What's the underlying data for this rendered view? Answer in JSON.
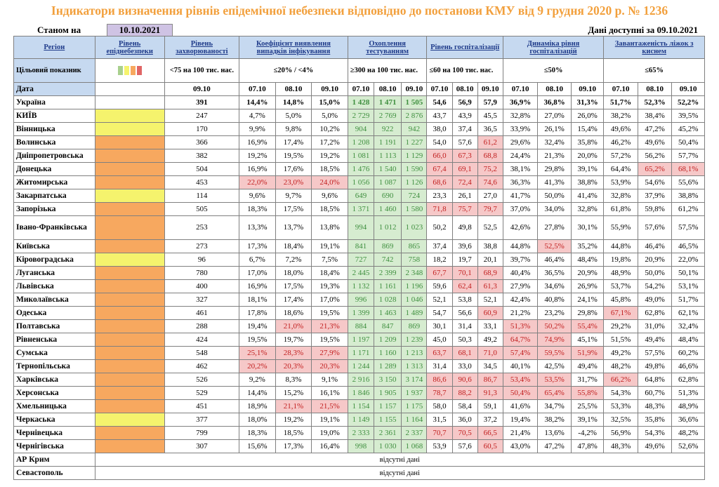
{
  "title": "Індикатори визначення рівнів епідемічної небезпеки відповідно до постанови КМУ від 9 грудня 2020 р. № 1236",
  "as_of_label": "Станом на",
  "as_of_date": "10.10.2021",
  "data_available": "Дані доступні за  09.10.2021",
  "colors": {
    "yellow": "#f5f36d",
    "orange": "#f7a85f",
    "green": "#d6ecd0",
    "red": "#f6c8c8",
    "red_text": "#c11e1e",
    "green_text": "#3f8f3f",
    "header_bg": "#c6d9f0",
    "title": "#f2a03d"
  },
  "headers": {
    "region": "Регіон",
    "level": "Рівень епіднебезпеки",
    "incidence": "Рівень захворюваності",
    "detection": "Коефіцієнт виявлення випадків інфікування",
    "testing": "Охоплення тестуванням",
    "hospitalization": "Рівень госпіталізації",
    "dynamics": "Динаміка рівня госпіталізацій",
    "oxygen": "Завантаженість ліжок з киснем"
  },
  "target": {
    "label": "Цільовий показник",
    "incidence": "<75 на 100 тис. нас.",
    "detection": "≤20% / <4%",
    "testing": "≥300 на 100 тис. нас.",
    "hospitalization": "≤60 на 100 тис. нас.",
    "dynamics": "≤50%",
    "oxygen": "≤65%",
    "legend_colors": [
      "#a8d08d",
      "#f5f36d",
      "#f7a85f",
      "#e06666"
    ]
  },
  "date_row": {
    "label": "Дата",
    "incidence": "09.10",
    "d1": "07.10",
    "d2": "08.10",
    "d3": "09.10"
  },
  "rows": [
    {
      "name": "Україна",
      "level": "",
      "inc": "391",
      "det": [
        "14,4%",
        "14,8%",
        "15,0%"
      ],
      "test": [
        "1 428",
        "1 471",
        "1 505"
      ],
      "hosp": [
        "54,6",
        "56,9",
        "57,9"
      ],
      "dyn": [
        "36,9%",
        "36,8%",
        "31,3%"
      ],
      "oxy": [
        "51,7%",
        "52,3%",
        "52,2%"
      ]
    },
    {
      "name": "КИЇВ",
      "level": "yellow",
      "inc": "247",
      "det": [
        "4,7%",
        "5,0%",
        "5,0%"
      ],
      "test": [
        "2 729",
        "2 769",
        "2 876"
      ],
      "hosp": [
        "43,7",
        "43,9",
        "45,5"
      ],
      "dyn": [
        "32,8%",
        "27,0%",
        "26,0%"
      ],
      "oxy": [
        "38,2%",
        "38,4%",
        "39,5%"
      ]
    },
    {
      "name": "Вінницька",
      "level": "yellow",
      "inc": "170",
      "det": [
        "9,9%",
        "9,8%",
        "10,2%"
      ],
      "test": [
        "904",
        "922",
        "942"
      ],
      "hosp": [
        "38,0",
        "37,4",
        "36,5"
      ],
      "dyn": [
        "33,9%",
        "26,1%",
        "15,4%"
      ],
      "oxy": [
        "49,6%",
        "47,2%",
        "45,2%"
      ]
    },
    {
      "name": "Волинська",
      "level": "orange",
      "inc": "366",
      "det": [
        "16,9%",
        "17,4%",
        "17,2%"
      ],
      "test": [
        "1 208",
        "1 191",
        "1 227"
      ],
      "hosp": [
        "54,0",
        "57,6",
        "61,2"
      ],
      "dyn": [
        "29,6%",
        "32,4%",
        "35,8%"
      ],
      "oxy": [
        "46,2%",
        "49,6%",
        "50,4%"
      ]
    },
    {
      "name": "Дніпропетровська",
      "level": "orange",
      "inc": "382",
      "det": [
        "19,2%",
        "19,5%",
        "19,2%"
      ],
      "test": [
        "1 081",
        "1 113",
        "1 129"
      ],
      "hosp": [
        "66,0",
        "67,3",
        "68,8"
      ],
      "dyn": [
        "24,4%",
        "21,3%",
        "20,0%"
      ],
      "oxy": [
        "57,2%",
        "56,2%",
        "57,7%"
      ]
    },
    {
      "name": "Донецька",
      "level": "orange",
      "inc": "504",
      "det": [
        "16,9%",
        "17,6%",
        "18,5%"
      ],
      "test": [
        "1 476",
        "1 540",
        "1 590"
      ],
      "hosp": [
        "67,4",
        "69,1",
        "75,2"
      ],
      "dyn": [
        "38,1%",
        "29,8%",
        "39,1%"
      ],
      "oxy": [
        "64,4%",
        "65,2%",
        "68,1%"
      ]
    },
    {
      "name": "Житомирська",
      "level": "orange",
      "inc": "453",
      "det": [
        "22,0%",
        "23,0%",
        "24,0%"
      ],
      "test": [
        "1 056",
        "1 087",
        "1 126"
      ],
      "hosp": [
        "68,6",
        "72,4",
        "74,6"
      ],
      "dyn": [
        "36,3%",
        "41,3%",
        "38,8%"
      ],
      "oxy": [
        "53,9%",
        "54,6%",
        "55,6%"
      ]
    },
    {
      "name": "Закарпатська",
      "level": "yellow",
      "inc": "114",
      "det": [
        "9,6%",
        "9,7%",
        "9,6%"
      ],
      "test": [
        "649",
        "690",
        "724"
      ],
      "hosp": [
        "23,3",
        "26,1",
        "27,0"
      ],
      "dyn": [
        "41,7%",
        "50,0%",
        "41,4%"
      ],
      "oxy": [
        "32,8%",
        "37,9%",
        "38,8%"
      ]
    },
    {
      "name": "Запорізька",
      "level": "orange",
      "inc": "505",
      "det": [
        "18,3%",
        "17,5%",
        "18,5%"
      ],
      "test": [
        "1 371",
        "1 460",
        "1 580"
      ],
      "hosp": [
        "71,8",
        "75,7",
        "79,7"
      ],
      "dyn": [
        "37,0%",
        "34,0%",
        "32,8%"
      ],
      "oxy": [
        "61,8%",
        "59,8%",
        "61,2%"
      ]
    },
    {
      "name": "Івано-Франківська",
      "level": "orange",
      "inc": "253",
      "det": [
        "13,3%",
        "13,7%",
        "13,8%"
      ],
      "test": [
        "994",
        "1 012",
        "1 023"
      ],
      "hosp": [
        "50,2",
        "49,8",
        "52,5"
      ],
      "dyn": [
        "42,6%",
        "27,8%",
        "30,1%"
      ],
      "oxy": [
        "55,9%",
        "57,6%",
        "57,5%"
      ]
    },
    {
      "name": "Київська",
      "level": "orange",
      "inc": "273",
      "det": [
        "17,3%",
        "18,4%",
        "19,1%"
      ],
      "test": [
        "841",
        "869",
        "865"
      ],
      "hosp": [
        "37,4",
        "39,6",
        "38,8"
      ],
      "dyn": [
        "44,8%",
        "52,5%",
        "35,2%"
      ],
      "oxy": [
        "44,8%",
        "46,4%",
        "46,5%"
      ]
    },
    {
      "name": "Кіровоградська",
      "level": "yellow",
      "inc": "96",
      "det": [
        "6,7%",
        "7,2%",
        "7,5%"
      ],
      "test": [
        "727",
        "742",
        "758"
      ],
      "hosp": [
        "18,2",
        "19,7",
        "20,1"
      ],
      "dyn": [
        "39,7%",
        "46,4%",
        "48,4%"
      ],
      "oxy": [
        "19,8%",
        "20,9%",
        "22,0%"
      ]
    },
    {
      "name": "Луганська",
      "level": "orange",
      "inc": "780",
      "det": [
        "17,0%",
        "18,0%",
        "18,4%"
      ],
      "test": [
        "2 445",
        "2 399",
        "2 348"
      ],
      "hosp": [
        "67,7",
        "70,1",
        "68,9"
      ],
      "dyn": [
        "40,4%",
        "36,5%",
        "20,9%"
      ],
      "oxy": [
        "48,9%",
        "50,0%",
        "50,1%"
      ]
    },
    {
      "name": "Львівська",
      "level": "orange",
      "inc": "400",
      "det": [
        "16,9%",
        "17,5%",
        "19,3%"
      ],
      "test": [
        "1 132",
        "1 161",
        "1 196"
      ],
      "hosp": [
        "59,6",
        "62,4",
        "61,3"
      ],
      "dyn": [
        "27,9%",
        "34,6%",
        "26,9%"
      ],
      "oxy": [
        "53,7%",
        "54,2%",
        "53,1%"
      ]
    },
    {
      "name": "Миколаївська",
      "level": "orange",
      "inc": "327",
      "det": [
        "18,1%",
        "17,4%",
        "17,0%"
      ],
      "test": [
        "996",
        "1 028",
        "1 046"
      ],
      "hosp": [
        "52,1",
        "53,8",
        "52,1"
      ],
      "dyn": [
        "42,4%",
        "40,8%",
        "24,1%"
      ],
      "oxy": [
        "45,8%",
        "49,0%",
        "51,7%"
      ]
    },
    {
      "name": "Одеська",
      "level": "orange",
      "inc": "461",
      "det": [
        "17,8%",
        "18,6%",
        "19,5%"
      ],
      "test": [
        "1 399",
        "1 463",
        "1 489"
      ],
      "hosp": [
        "54,7",
        "56,6",
        "60,9"
      ],
      "dyn": [
        "21,2%",
        "23,2%",
        "29,8%"
      ],
      "oxy": [
        "67,1%",
        "62,8%",
        "62,1%"
      ]
    },
    {
      "name": "Полтавська",
      "level": "orange",
      "inc": "288",
      "det": [
        "19,4%",
        "21,0%",
        "21,3%"
      ],
      "test": [
        "884",
        "847",
        "869"
      ],
      "hosp": [
        "30,1",
        "31,4",
        "33,1"
      ],
      "dyn": [
        "51,3%",
        "50,2%",
        "55,4%"
      ],
      "oxy": [
        "29,2%",
        "31,0%",
        "32,4%"
      ]
    },
    {
      "name": "Рівненська",
      "level": "orange",
      "inc": "424",
      "det": [
        "19,5%",
        "19,7%",
        "19,5%"
      ],
      "test": [
        "1 197",
        "1 209",
        "1 239"
      ],
      "hosp": [
        "45,0",
        "50,3",
        "49,2"
      ],
      "dyn": [
        "64,7%",
        "74,9%",
        "45,1%"
      ],
      "oxy": [
        "51,5%",
        "49,4%",
        "48,4%"
      ]
    },
    {
      "name": "Сумська",
      "level": "orange",
      "inc": "548",
      "det": [
        "25,1%",
        "28,3%",
        "27,9%"
      ],
      "test": [
        "1 171",
        "1 160",
        "1 213"
      ],
      "hosp": [
        "63,7",
        "68,1",
        "71,0"
      ],
      "dyn": [
        "57,4%",
        "59,5%",
        "51,9%"
      ],
      "oxy": [
        "49,2%",
        "57,5%",
        "60,2%"
      ]
    },
    {
      "name": "Тернопільська",
      "level": "orange",
      "inc": "462",
      "det": [
        "20,2%",
        "20,3%",
        "20,3%"
      ],
      "test": [
        "1 244",
        "1 289",
        "1 313"
      ],
      "hosp": [
        "31,4",
        "33,0",
        "34,5"
      ],
      "dyn": [
        "40,1%",
        "42,5%",
        "49,4%"
      ],
      "oxy": [
        "48,2%",
        "49,8%",
        "46,6%"
      ]
    },
    {
      "name": "Харківська",
      "level": "orange",
      "inc": "526",
      "det": [
        "9,2%",
        "8,3%",
        "9,1%"
      ],
      "test": [
        "2 916",
        "3 150",
        "3 174"
      ],
      "hosp": [
        "86,6",
        "90,6",
        "86,7"
      ],
      "dyn": [
        "53,4%",
        "53,5%",
        "31,7%"
      ],
      "oxy": [
        "66,2%",
        "64,8%",
        "62,8%"
      ]
    },
    {
      "name": "Херсонська",
      "level": "orange",
      "inc": "529",
      "det": [
        "14,4%",
        "15,2%",
        "16,1%"
      ],
      "test": [
        "1 846",
        "1 905",
        "1 937"
      ],
      "hosp": [
        "78,7",
        "88,2",
        "91,3"
      ],
      "dyn": [
        "50,4%",
        "65,4%",
        "55,8%"
      ],
      "oxy": [
        "54,3%",
        "60,7%",
        "51,3%"
      ]
    },
    {
      "name": "Хмельницька",
      "level": "orange",
      "inc": "451",
      "det": [
        "18,9%",
        "21,1%",
        "21,5%"
      ],
      "test": [
        "1 154",
        "1 157",
        "1 175"
      ],
      "hosp": [
        "58,0",
        "58,4",
        "59,1"
      ],
      "dyn": [
        "41,6%",
        "34,7%",
        "25,5%"
      ],
      "oxy": [
        "53,3%",
        "48,3%",
        "48,9%"
      ]
    },
    {
      "name": "Черкаська",
      "level": "yellow",
      "inc": "377",
      "det": [
        "18,0%",
        "19,2%",
        "19,1%"
      ],
      "test": [
        "1 149",
        "1 155",
        "1 164"
      ],
      "hosp": [
        "31,5",
        "36,0",
        "37,2"
      ],
      "dyn": [
        "19,4%",
        "38,2%",
        "39,1%"
      ],
      "oxy": [
        "32,5%",
        "35,8%",
        "36,6%"
      ]
    },
    {
      "name": "Чернівецька",
      "level": "orange",
      "inc": "799",
      "det": [
        "18,3%",
        "18,5%",
        "19,0%"
      ],
      "test": [
        "2 333",
        "2 361",
        "2 337"
      ],
      "hosp": [
        "70,7",
        "70,5",
        "66,5"
      ],
      "dyn": [
        "21,4%",
        "13,6%",
        "-4,2%"
      ],
      "oxy": [
        "56,9%",
        "54,3%",
        "48,2%"
      ]
    },
    {
      "name": "Чернігівська",
      "level": "orange",
      "inc": "307",
      "det": [
        "15,6%",
        "17,3%",
        "16,4%"
      ],
      "test": [
        "998",
        "1 030",
        "1 068"
      ],
      "hosp": [
        "53,9",
        "57,6",
        "60,5"
      ],
      "dyn": [
        "43,0%",
        "47,2%",
        "47,8%"
      ],
      "oxy": [
        "48,3%",
        "49,6%",
        "52,6%"
      ]
    }
  ],
  "missing_rows": [
    {
      "name": "АР Крим",
      "note": "відсутні дані"
    },
    {
      "name": "Севастополь",
      "note": "відсутні дані"
    }
  ]
}
